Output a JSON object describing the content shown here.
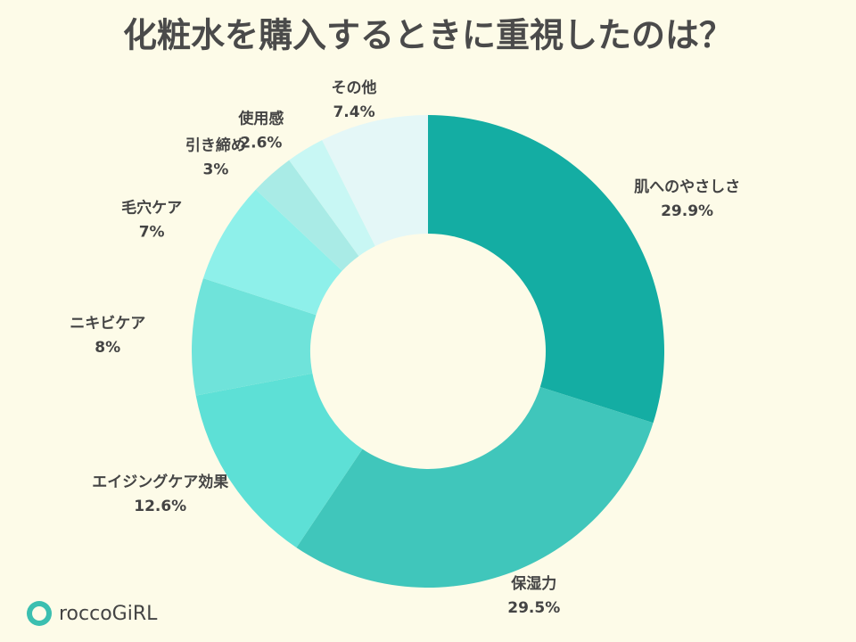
{
  "chart_data": {
    "type": "donut",
    "title": "化粧水を購入するときに重視したのは？",
    "categories": [
      "肌へのやさしさ",
      "保湿力",
      "エイジングケア効果",
      "ニキビケア",
      "毛穴ケア",
      "引き締め",
      "使用感",
      "その他"
    ],
    "values": [
      29.9,
      29.5,
      12.6,
      8,
      7,
      3,
      2.6,
      7.4
    ],
    "value_labels": [
      "29.9%",
      "29.5%",
      "12.6%",
      "8%",
      "7%",
      "3%",
      "2.6%",
      "7.4%"
    ],
    "colors": [
      "#14ada3",
      "#40c6bb",
      "#5de0d6",
      "#6fe3da",
      "#8ef0ea",
      "#a9ebe6",
      "#c8f7f4",
      "#e4f7f7"
    ]
  },
  "brand": "roccoGiRL"
}
